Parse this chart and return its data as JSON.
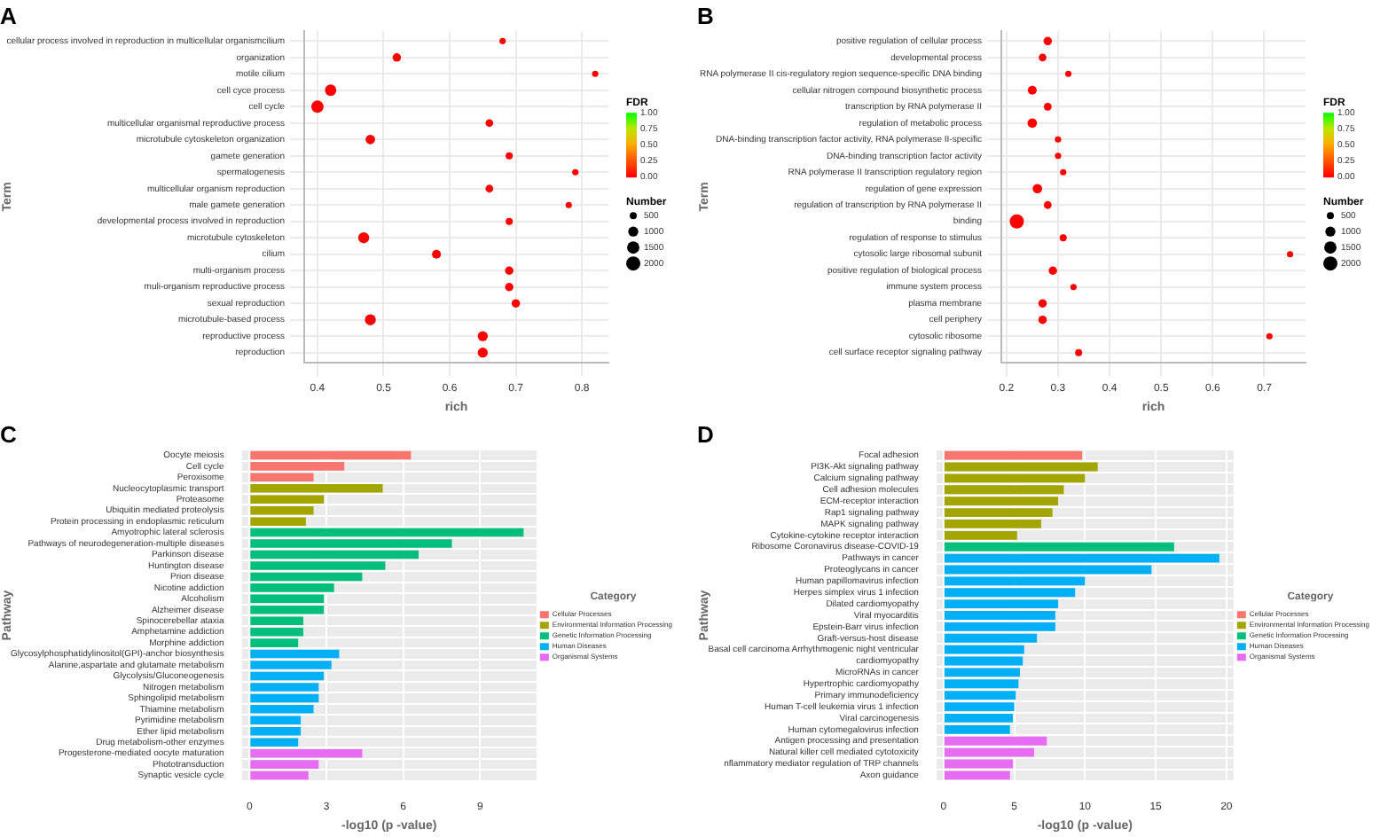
{
  "chart_data": [
    {
      "type": "bubble",
      "title": "A",
      "orientation": "horizontal",
      "categories": [
        "cellular process involved in reproduction in multicellular organismcilium",
        "organization",
        "motile cilium",
        "cell cyce process",
        "cell cycle",
        "multicellular organismal reproductive process",
        "microtubule cytoskeleton organization",
        "gamete generation",
        "spermatogenesis",
        "multicellular organism reproduction",
        "male gamete generation",
        "developmental process involved in reproduction",
        "microtubule cytoskeleton",
        "cilium",
        "multi-organism process",
        "muli-organism reproductive process",
        "sexual reproduction",
        "microtubule-based process",
        "reproductive process",
        "reproduction"
      ],
      "values": [
        0.68,
        0.52,
        0.82,
        0.42,
        0.4,
        0.66,
        0.48,
        0.69,
        0.79,
        0.66,
        0.78,
        0.69,
        0.47,
        0.58,
        0.69,
        0.69,
        0.7,
        0.48,
        0.65,
        0.65
      ],
      "sizes": [
        400,
        700,
        400,
        1300,
        1500,
        600,
        900,
        500,
        400,
        600,
        400,
        500,
        1200,
        800,
        700,
        700,
        700,
        1200,
        1000,
        1000
      ],
      "cvalues": [
        0,
        0,
        0,
        0,
        0,
        0,
        0,
        0,
        0,
        0,
        0,
        0,
        0,
        0,
        0,
        0,
        0,
        0,
        0,
        0
      ],
      "xlim": [
        0.38,
        0.84
      ],
      "xticks": [
        0.4,
        0.5,
        0.6,
        0.7,
        0.8
      ],
      "xlabel": "rich",
      "ylabel": "Term",
      "clabel": "FDR",
      "clim": [
        0,
        1
      ],
      "cticks": [
        {
          "value": 0,
          "label": "0.00"
        },
        {
          "value": 0.25,
          "label": "0.25"
        },
        {
          "value": 0.5,
          "label": "0.50"
        },
        {
          "value": 0.75,
          "label": "0.75"
        },
        {
          "value": 1,
          "label": "1.00"
        }
      ],
      "legend_title": "Number",
      "size_legend": [
        500,
        1000,
        1500,
        2000
      ],
      "grid": true
    },
    {
      "type": "bubble",
      "title": "B",
      "orientation": "horizontal",
      "categories": [
        "positive regulation of cellular process",
        "developmental process",
        "RNA polymerase II cis-regulatory region sequence-specific DNA binding",
        "cellular nitrogen compound biosynthetic process",
        "transcription by RNA polymerase II",
        "regulation of metabolic process",
        "DNA-binding transcription factor activity, RNA polymerase II-specific",
        "DNA-binding transcription factor activity",
        "RNA polymerase II transcription regulatory region",
        "regulation of gene expression",
        "regulation of transcription by RNA polymerase II",
        "binding",
        "regulation of response to stimulus",
        "cytosolic large ribosomal subunit",
        "positive regulation of biological process",
        "immune system process",
        "plasma membrane",
        "cell periphery",
        "cytosolic ribosome",
        "cell surface receptor signaling pathway"
      ],
      "values": [
        0.28,
        0.27,
        0.32,
        0.25,
        0.28,
        0.25,
        0.3,
        0.3,
        0.31,
        0.26,
        0.28,
        0.22,
        0.31,
        0.75,
        0.29,
        0.33,
        0.27,
        0.27,
        0.71,
        0.34
      ],
      "sizes": [
        700,
        600,
        400,
        800,
        600,
        900,
        400,
        400,
        400,
        900,
        600,
        2000,
        500,
        400,
        700,
        400,
        700,
        700,
        400,
        500
      ],
      "cvalues": [
        0,
        0,
        0,
        0,
        0,
        0,
        0,
        0,
        0,
        0,
        0,
        0,
        0,
        0,
        0,
        0,
        0,
        0,
        0,
        0
      ],
      "xlim": [
        0.19,
        0.78
      ],
      "xticks": [
        0.2,
        0.3,
        0.4,
        0.5,
        0.6,
        0.7
      ],
      "xlabel": "rich",
      "ylabel": "Term",
      "clabel": "FDR",
      "clim": [
        0,
        1
      ],
      "cticks": [
        {
          "value": 0,
          "label": "0.00"
        },
        {
          "value": 0.25,
          "label": "0.25"
        },
        {
          "value": 0.5,
          "label": "0.50"
        },
        {
          "value": 0.75,
          "label": "0.75"
        },
        {
          "value": 1,
          "label": "1.00"
        }
      ],
      "legend_title": "Number",
      "size_legend": [
        500,
        1000,
        1500,
        2000
      ],
      "grid": true
    },
    {
      "type": "bar",
      "title": "C",
      "orientation": "horizontal",
      "stacked": true,
      "categories": [
        "Oocyte meiosis",
        "Cell cycle",
        "Peroxisome",
        "Nucleocytoplasmic transport",
        "Proteasome",
        "Ubiquitin mediated proteolysis",
        "Protein processing in endoplasmic reticulum",
        "Amyotrophic lateral sclerosis",
        "Pathways of neurodegeneration-multiple diseases",
        "Parkinson disease",
        "Huntington disease",
        "Prion disease",
        "Nicotine addiction",
        "Alcoholism",
        "Alzheimer disease",
        "Spinocerebellar ataxia",
        "Amphetamine addiction",
        "Morphine addiction",
        "Glycosylphosphatidylinositol(GPI)-anchor biosynthesis",
        "Alanine,aspartate and glutamate metabolism",
        "Glycolysis/Gluconeogenesis",
        "Nitrogen metabolism",
        "Sphingolipid metabolism",
        "Thiamine metabolism",
        "Pyrimidine metabolism",
        "Ether lipid metabolism",
        "Drug metabolism-other enzymes",
        "Progesterone-mediated oocyte maturation",
        "Phototransduction",
        "Synaptic vesicle cycle"
      ],
      "series": [
        {
          "name": "Cellular Processes",
          "color": "#f8766d",
          "values": [
            6.3,
            3.7,
            2.5,
            null,
            null,
            null,
            null,
            null,
            null,
            null,
            null,
            null,
            null,
            null,
            null,
            null,
            null,
            null,
            null,
            null,
            null,
            null,
            null,
            null,
            null,
            null,
            null,
            null,
            null,
            null
          ]
        },
        {
          "name": "Environmental Information Processing",
          "color": "#a3a500",
          "values": [
            null,
            null,
            null,
            5.2,
            2.9,
            2.5,
            2.2,
            null,
            null,
            null,
            null,
            null,
            null,
            null,
            null,
            null,
            null,
            null,
            null,
            null,
            null,
            null,
            null,
            null,
            null,
            null,
            null,
            null,
            null,
            null
          ]
        },
        {
          "name": "Genetic Information Processing",
          "color": "#00bf7d",
          "values": [
            null,
            null,
            null,
            null,
            null,
            null,
            null,
            10.7,
            7.9,
            6.6,
            5.3,
            4.4,
            3.3,
            2.9,
            2.9,
            2.1,
            2.1,
            1.9,
            null,
            null,
            null,
            null,
            null,
            null,
            null,
            null,
            null,
            null,
            null,
            null
          ]
        },
        {
          "name": "Human Diseases",
          "color": "#00b0f6",
          "values": [
            null,
            null,
            null,
            null,
            null,
            null,
            null,
            null,
            null,
            null,
            null,
            null,
            null,
            null,
            null,
            null,
            null,
            null,
            3.5,
            3.2,
            2.9,
            2.7,
            2.7,
            2.5,
            2.0,
            2.0,
            1.9,
            null,
            null,
            null
          ]
        },
        {
          "name": "Organismal Systems",
          "color": "#e76bf3",
          "values": [
            null,
            null,
            null,
            null,
            null,
            null,
            null,
            null,
            null,
            null,
            null,
            null,
            null,
            null,
            null,
            null,
            null,
            null,
            null,
            null,
            null,
            null,
            null,
            null,
            null,
            null,
            null,
            4.4,
            2.7,
            2.3
          ]
        }
      ],
      "xlim": [
        -0.3,
        11.2
      ],
      "xticks": [
        0,
        3,
        6,
        9
      ],
      "xlabel": "-log10 (p -value)",
      "ylabel": "Pathway",
      "legend_title": "Category",
      "legend": "right",
      "grid": true
    },
    {
      "type": "bar",
      "title": "D",
      "orientation": "horizontal",
      "stacked": true,
      "categories": [
        "Focal adhesion",
        "PI3K-Akt signaling pathway",
        "Calcium signaling pathway",
        "Cell adhesion molecules",
        "ECM-receptor interaction",
        "Rap1 signaling pathway",
        "MAPK signaling pathway",
        "Cytokine-cytokine receptor interaction",
        "Ribosome Coronavirus disease-COVID-19",
        "Pathways in cancer",
        "Proteoglycans in cancer",
        "Human papillomavirus infection",
        "Herpes simplex virus 1 infection",
        "Dilated cardiomyopathy",
        "Viral myocarditis",
        "Epstein-Barr virus infection",
        "Graft-versus-host disease",
        "Basal cell carcinoma Arrhythmogenic night ventricular",
        "cardiomyopathy",
        "MicroRNAs in cancer",
        "Hypertrophic cardiomyopathy",
        "Primary immunodeficiency",
        "Human T-cell leukemia virus 1 infection",
        "Viral carcinogenesis",
        "Human cytomegalovirus infection",
        "Antigen processing and presentation",
        "Natural killer cell mediated cytotoxicity",
        "nflammatory mediator regulation of TRP channels",
        "Axon guidance"
      ],
      "series": [
        {
          "name": "Cellular Processes",
          "color": "#f8766d",
          "values": [
            9.8,
            null,
            null,
            null,
            null,
            null,
            null,
            null,
            null,
            null,
            null,
            null,
            null,
            null,
            null,
            null,
            null,
            null,
            null,
            null,
            null,
            null,
            null,
            null,
            null,
            null,
            null,
            null,
            null
          ]
        },
        {
          "name": "Environmental Information Processing",
          "color": "#a3a500",
          "values": [
            null,
            10.9,
            10.0,
            8.5,
            8.1,
            7.7,
            6.9,
            5.2,
            null,
            null,
            null,
            null,
            null,
            null,
            null,
            null,
            null,
            null,
            null,
            null,
            null,
            null,
            null,
            null,
            null,
            null,
            null,
            null,
            null
          ]
        },
        {
          "name": "Genetic Information Processing",
          "color": "#00bf7d",
          "values": [
            null,
            null,
            null,
            null,
            null,
            null,
            null,
            null,
            16.3,
            null,
            null,
            null,
            null,
            null,
            null,
            null,
            null,
            null,
            null,
            null,
            null,
            null,
            null,
            null,
            null,
            null,
            null,
            null,
            null
          ]
        },
        {
          "name": "Human Diseases",
          "color": "#00b0f6",
          "values": [
            null,
            null,
            null,
            null,
            null,
            null,
            null,
            null,
            null,
            19.5,
            14.7,
            10.0,
            9.3,
            8.1,
            7.9,
            7.9,
            6.6,
            5.7,
            5.6,
            5.4,
            5.3,
            5.1,
            5.0,
            4.9,
            4.7,
            null,
            null,
            null,
            null
          ]
        },
        {
          "name": "Organismal Systems",
          "color": "#e76bf3",
          "values": [
            null,
            null,
            null,
            null,
            null,
            null,
            null,
            null,
            null,
            null,
            null,
            null,
            null,
            null,
            null,
            null,
            null,
            null,
            null,
            null,
            null,
            null,
            null,
            null,
            null,
            7.3,
            6.4,
            4.9,
            4.7
          ]
        }
      ],
      "xlim": [
        -0.5,
        20.5
      ],
      "xticks": [
        0,
        5,
        10,
        15,
        20
      ],
      "xlabel": "-log10 (p -value)",
      "ylabel": "Pathway",
      "legend_title": "Category",
      "legend": "right",
      "grid": true
    }
  ]
}
